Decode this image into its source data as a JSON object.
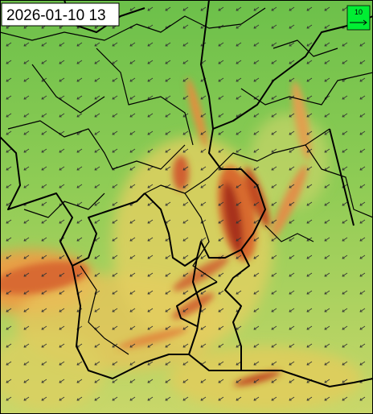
{
  "header": {
    "timestamp": "2026-01-10 13"
  },
  "legend": {
    "label": "10"
  }
}
